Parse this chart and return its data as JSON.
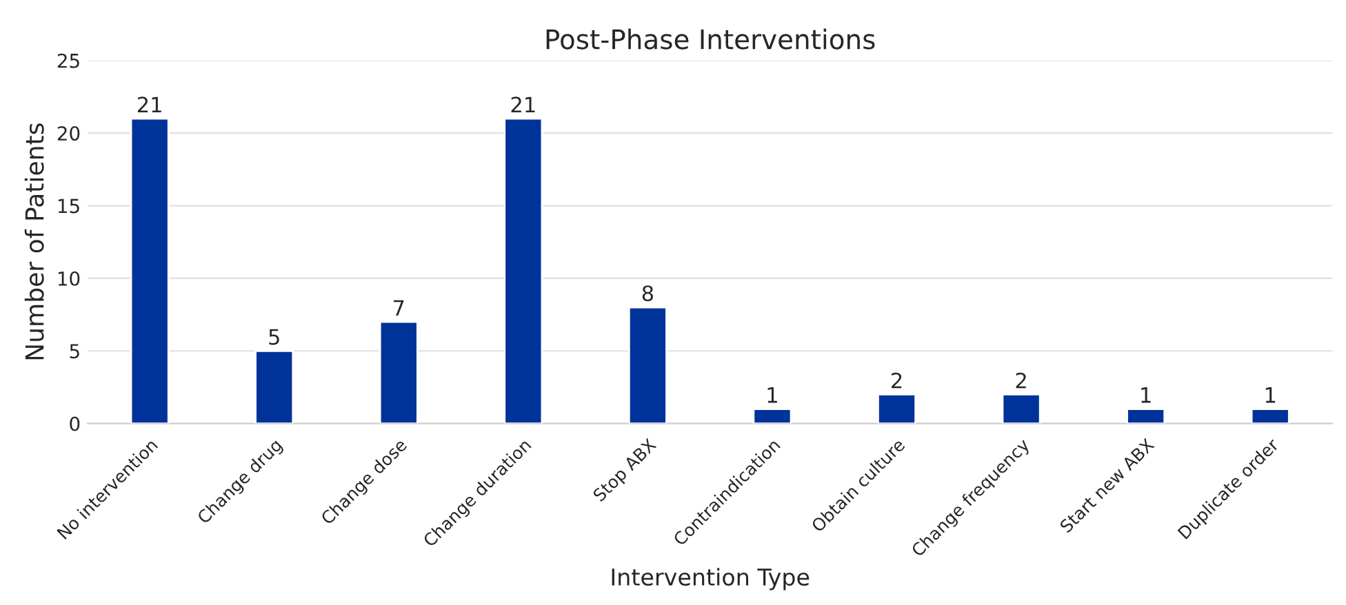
{
  "chart_data": {
    "type": "bar",
    "title": "Post-Phase Interventions",
    "xlabel": "Intervention Type",
    "ylabel": "Number of Patients",
    "categories": [
      "No intervention",
      "Change drug",
      "Change dose",
      "Change duration",
      "Stop ABX",
      "Contraindication",
      "Obtain culture",
      "Change frequency",
      "Start new ABX",
      "Duplicate order"
    ],
    "values": [
      21,
      5,
      7,
      21,
      8,
      1,
      2,
      2,
      1,
      1
    ],
    "color": "#003399",
    "ylim": [
      0,
      25
    ],
    "yticks": [
      0,
      5,
      10,
      15,
      20,
      25
    ],
    "grid": "y",
    "data_labels": true
  }
}
